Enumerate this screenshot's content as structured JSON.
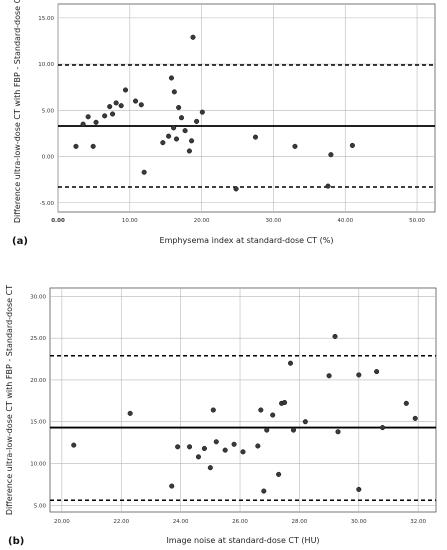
{
  "chart_data": [
    {
      "panel": "(a)",
      "type": "scatter",
      "xlabel": "Emphysema index at standard-dose CT (%)",
      "ylabel": "Difference ultra-low-dose CT with FBP - Standard-dose CT",
      "xlim": [
        0,
        52.5
      ],
      "ylim": [
        -6.0,
        16.5
      ],
      "xticks": [
        "0.00",
        "10.00",
        "20.00",
        "30.00",
        "40.00",
        "50.00"
      ],
      "yticks": [
        "-5.00",
        "0.00",
        "5.00",
        "10.00",
        "15.00"
      ],
      "grid": true,
      "reference_lines": [
        {
          "y": 3.3,
          "style": "solid"
        },
        {
          "y": 9.9,
          "style": "dashed"
        },
        {
          "y": -3.3,
          "style": "dashed"
        }
      ],
      "points": [
        {
          "x": 2.5,
          "y": 1.1
        },
        {
          "x": 3.5,
          "y": 3.5
        },
        {
          "x": 4.2,
          "y": 4.3
        },
        {
          "x": 4.9,
          "y": 1.1
        },
        {
          "x": 5.3,
          "y": 3.7
        },
        {
          "x": 6.5,
          "y": 4.4
        },
        {
          "x": 7.2,
          "y": 5.4
        },
        {
          "x": 7.6,
          "y": 4.6
        },
        {
          "x": 8.1,
          "y": 5.8
        },
        {
          "x": 8.8,
          "y": 5.5
        },
        {
          "x": 9.4,
          "y": 7.2
        },
        {
          "x": 10.8,
          "y": 6.0
        },
        {
          "x": 11.6,
          "y": 5.6
        },
        {
          "x": 12.0,
          "y": -1.7
        },
        {
          "x": 14.6,
          "y": 1.5
        },
        {
          "x": 15.4,
          "y": 2.2
        },
        {
          "x": 15.8,
          "y": 8.5
        },
        {
          "x": 16.1,
          "y": 3.1
        },
        {
          "x": 16.2,
          "y": 7.0
        },
        {
          "x": 16.5,
          "y": 1.9
        },
        {
          "x": 16.8,
          "y": 5.3
        },
        {
          "x": 17.2,
          "y": 4.2
        },
        {
          "x": 17.7,
          "y": 2.8
        },
        {
          "x": 18.3,
          "y": 0.6
        },
        {
          "x": 18.6,
          "y": 1.7
        },
        {
          "x": 18.8,
          "y": 12.9
        },
        {
          "x": 19.3,
          "y": 3.8
        },
        {
          "x": 20.1,
          "y": 4.8
        },
        {
          "x": 24.8,
          "y": -3.5
        },
        {
          "x": 27.5,
          "y": 2.1
        },
        {
          "x": 33.0,
          "y": 1.1
        },
        {
          "x": 37.6,
          "y": -3.2
        },
        {
          "x": 38.0,
          "y": 0.2
        },
        {
          "x": 41.0,
          "y": 1.2
        }
      ]
    },
    {
      "panel": "(b)",
      "type": "scatter",
      "xlabel": "Image noise at standard-dose CT (HU)",
      "ylabel": "Difference ultra-low-dose CT with FBP - Standard-dose CT",
      "xlim": [
        19.6,
        32.6
      ],
      "ylim": [
        4.2,
        31.0
      ],
      "xticks": [
        "20.00",
        "22.00",
        "24.00",
        "26.00",
        "28.00",
        "30.00",
        "32.00"
      ],
      "yticks": [
        "5.00",
        "10.00",
        "15.00",
        "20.00",
        "25.00",
        "30.00"
      ],
      "grid": true,
      "reference_lines": [
        {
          "y": 14.3,
          "style": "solid"
        },
        {
          "y": 22.9,
          "style": "dashed"
        },
        {
          "y": 5.6,
          "style": "dashed"
        }
      ],
      "points": [
        {
          "x": 20.4,
          "y": 12.2
        },
        {
          "x": 22.3,
          "y": 16.0
        },
        {
          "x": 23.7,
          "y": 7.3
        },
        {
          "x": 23.9,
          "y": 12.0
        },
        {
          "x": 24.3,
          "y": 12.0
        },
        {
          "x": 24.6,
          "y": 10.8
        },
        {
          "x": 24.8,
          "y": 11.8
        },
        {
          "x": 25.0,
          "y": 9.5
        },
        {
          "x": 25.1,
          "y": 16.4
        },
        {
          "x": 25.2,
          "y": 12.6
        },
        {
          "x": 25.5,
          "y": 11.6
        },
        {
          "x": 25.8,
          "y": 12.3
        },
        {
          "x": 26.1,
          "y": 11.4
        },
        {
          "x": 26.6,
          "y": 12.1
        },
        {
          "x": 26.7,
          "y": 16.4
        },
        {
          "x": 26.8,
          "y": 6.7
        },
        {
          "x": 26.9,
          "y": 14.0
        },
        {
          "x": 27.1,
          "y": 15.8
        },
        {
          "x": 27.3,
          "y": 8.7
        },
        {
          "x": 27.4,
          "y": 17.2
        },
        {
          "x": 27.5,
          "y": 17.3
        },
        {
          "x": 27.7,
          "y": 22.0
        },
        {
          "x": 27.8,
          "y": 14.0
        },
        {
          "x": 28.2,
          "y": 15.0
        },
        {
          "x": 29.0,
          "y": 20.5
        },
        {
          "x": 29.2,
          "y": 25.2
        },
        {
          "x": 29.3,
          "y": 13.8
        },
        {
          "x": 30.0,
          "y": 20.6
        },
        {
          "x": 30.0,
          "y": 6.9
        },
        {
          "x": 30.6,
          "y": 21.0
        },
        {
          "x": 30.8,
          "y": 14.3
        },
        {
          "x": 31.6,
          "y": 17.2
        },
        {
          "x": 31.9,
          "y": 15.4
        }
      ]
    }
  ]
}
